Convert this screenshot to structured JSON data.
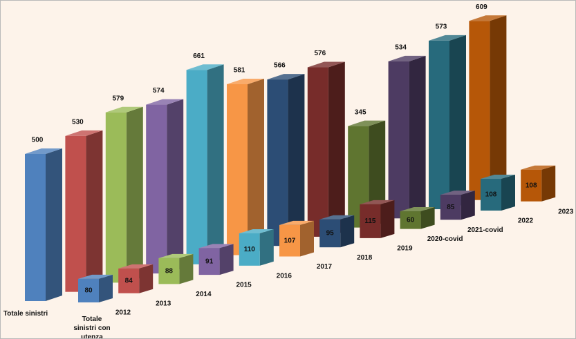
{
  "chart_data": {
    "type": "bar",
    "categories": [
      "Totale sinistri",
      "Totale sinistri con utenza debole"
    ],
    "series": [
      {
        "name": "2012",
        "color": "#4f81bd",
        "values": [
          500,
          80
        ]
      },
      {
        "name": "2013",
        "color": "#c0504d",
        "values": [
          530,
          84
        ]
      },
      {
        "name": "2014",
        "color": "#9bbb59",
        "values": [
          579,
          88
        ]
      },
      {
        "name": "2015",
        "color": "#8064a2",
        "values": [
          574,
          91
        ]
      },
      {
        "name": "2016",
        "color": "#4bacc6",
        "values": [
          661,
          110
        ]
      },
      {
        "name": "2017",
        "color": "#f79646",
        "values": [
          581,
          107
        ]
      },
      {
        "name": "2018",
        "color": "#2c4d75",
        "values": [
          566,
          95
        ]
      },
      {
        "name": "2019",
        "color": "#772c2a",
        "values": [
          576,
          115
        ]
      },
      {
        "name": "2020-covid",
        "color": "#5f7530",
        "values": [
          345,
          60
        ]
      },
      {
        "name": "2021-covid",
        "color": "#4d3b62",
        "values": [
          534,
          85
        ]
      },
      {
        "name": "2022",
        "color": "#276a7c",
        "values": [
          573,
          108
        ]
      },
      {
        "name": "2023",
        "color": "#b65708",
        "values": [
          609,
          108
        ]
      }
    ]
  }
}
